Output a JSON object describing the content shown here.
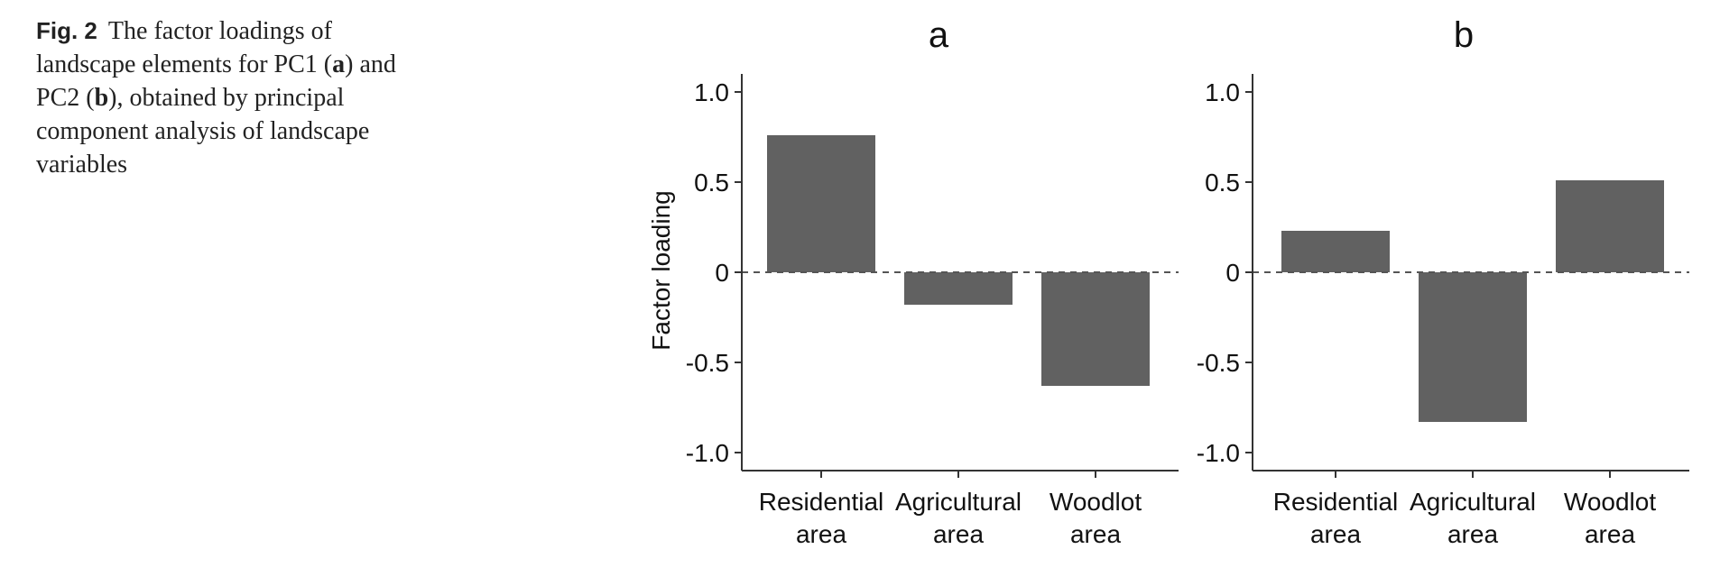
{
  "caption": {
    "label": "Fig. 2",
    "parts": [
      "The factor loadings of landscape elements for PC1 (",
      "a",
      ") and PC2 (",
      "b",
      "), obtained by principal component analysis of landscape variables"
    ]
  },
  "colors": {
    "bar": "#616161",
    "axis": "#333333",
    "zero_line": "#555555"
  },
  "chart_data": [
    {
      "type": "bar",
      "title": "a",
      "ylabel": "Factor loading",
      "xlabel": "",
      "categories": [
        [
          "Residential",
          "area"
        ],
        [
          "Agricultural",
          "area"
        ],
        [
          "Woodlot",
          "area"
        ]
      ],
      "values": [
        0.76,
        -0.18,
        -0.63
      ],
      "ylim": [
        -1.1,
        1.1
      ],
      "yticks": [
        1.0,
        0.5,
        0,
        -0.5,
        -1.0
      ],
      "ytick_labels": [
        "1.0",
        "0.5",
        "0",
        "-0.5",
        "-1.0"
      ],
      "zero_line": "dashed",
      "grid": false
    },
    {
      "type": "bar",
      "title": "b",
      "ylabel": "",
      "xlabel": "",
      "categories": [
        [
          "Residential",
          "area"
        ],
        [
          "Agricultural",
          "area"
        ],
        [
          "Woodlot",
          "area"
        ]
      ],
      "values": [
        0.23,
        -0.83,
        0.51
      ],
      "ylim": [
        -1.1,
        1.1
      ],
      "yticks": [
        1.0,
        0.5,
        0,
        -0.5,
        -1.0
      ],
      "ytick_labels": [
        "1.0",
        "0.5",
        "0",
        "-0.5",
        "-1.0"
      ],
      "zero_line": "dashed",
      "grid": false
    }
  ]
}
